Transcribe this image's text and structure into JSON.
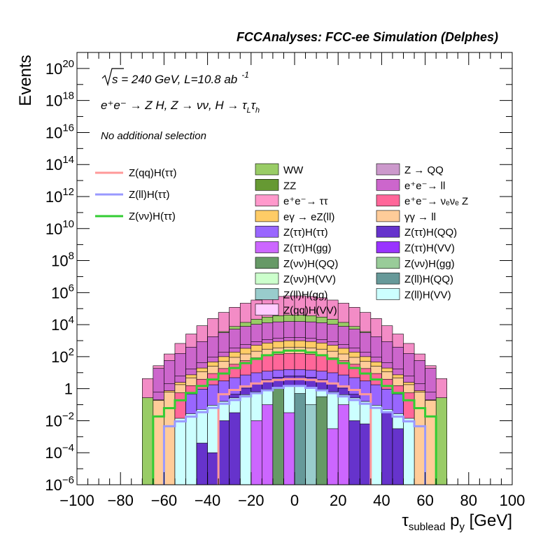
{
  "chart_data": {
    "type": "bar",
    "title": "FCCAnalyses: FCC-ee Simulation (Delphes)",
    "annotation": {
      "sqrt_s": "s = 240 GeV, L=10.8 ab",
      "lumi_exp": "-1",
      "process": "e⁺e⁻ → Z H, Z → νν, H → τ",
      "process_sub1": "L",
      "process_tau2": "τ",
      "process_sub2": "h",
      "selection": "No additional selection"
    },
    "xlabel_main": "τ",
    "xlabel_sub": "sublead",
    "xlabel_rest": " p",
    "xlabel_sub2": "y",
    "xlabel_unit": " [GeV]",
    "ylabel": "Events",
    "x_range": [
      -100,
      100
    ],
    "log_y": true,
    "y_range_exp": [
      -6,
      21
    ],
    "bin_width": 5,
    "x_ticks": [
      "−100",
      "−80",
      "−60",
      "−40",
      "−20",
      "0",
      "20",
      "40",
      "60",
      "80",
      "100"
    ],
    "x_tick_values": [
      -100,
      -80,
      -60,
      -40,
      -20,
      0,
      20,
      40,
      60,
      80,
      100
    ],
    "y_ticks": [
      {
        "exp": -6,
        "base": "10",
        "sup": "−6"
      },
      {
        "exp": -4,
        "base": "10",
        "sup": "−4"
      },
      {
        "exp": -2,
        "base": "10",
        "sup": "−2"
      },
      {
        "exp": 0,
        "base": "1",
        "sup": ""
      },
      {
        "exp": 2,
        "base": "10",
        "sup": "2"
      },
      {
        "exp": 4,
        "base": "10",
        "sup": "4"
      },
      {
        "exp": 6,
        "base": "10",
        "sup": "6"
      },
      {
        "exp": 8,
        "base": "10",
        "sup": "8"
      },
      {
        "exp": 10,
        "base": "10",
        "sup": "10"
      },
      {
        "exp": 12,
        "base": "10",
        "sup": "12"
      },
      {
        "exp": 14,
        "base": "10",
        "sup": "14"
      },
      {
        "exp": 16,
        "base": "10",
        "sup": "16"
      },
      {
        "exp": 18,
        "base": "10",
        "sup": "18"
      },
      {
        "exp": 20,
        "base": "10",
        "sup": "20"
      }
    ],
    "stack_envelopes": [
      {
        "name": "WW+ZZ",
        "color": "#f38cc6",
        "xmin": -70,
        "xmax": 70,
        "peak": 5.8,
        "edge": 0.2,
        "p": 2.2
      },
      {
        "name": "WW",
        "color": "#99cc66",
        "xmin": -70,
        "xmax": 70,
        "peak": 4.6,
        "edge": -1.0,
        "p": 2.2
      },
      {
        "name": "Z->QQ / ll",
        "color": "#cc66cc",
        "xmin": -65,
        "xmax": 65,
        "peak": 4.2,
        "edge": 1.0,
        "p": 2.2
      },
      {
        "name": "ee->ll",
        "color": "#cc66cc",
        "xmin": -65,
        "xmax": 65,
        "peak": 3.2,
        "edge": -0.5,
        "p": 2.0
      },
      {
        "name": "eγ->eZ(ll)",
        "color": "#ffcc66",
        "xmin": -65,
        "xmax": 65,
        "peak": 3.0,
        "edge": -1.0,
        "p": 2.0
      },
      {
        "name": "γγ->ll",
        "color": "#ffcc99",
        "xmin": -65,
        "xmax": 65,
        "peak": 2.6,
        "edge": -1.0,
        "p": 2.0
      },
      {
        "name": "ee->ννZ",
        "color": "#ff6699",
        "xmin": -55,
        "xmax": 55,
        "peak": 2.2,
        "edge": -0.5,
        "p": 2.0
      },
      {
        "name": "Z(ττ)H(ττ)",
        "color": "#9966ff",
        "xmin": -50,
        "xmax": 50,
        "peak": 1.2,
        "edge": -0.5,
        "p": 2.0
      },
      {
        "name": "Z(ττ)H(QQ)",
        "color": "#6633cc",
        "xmin": -50,
        "xmax": 50,
        "peak": 0.8,
        "edge": -3.0,
        "p": 2.0
      },
      {
        "name": "Z(ll)H(VV)",
        "color": "#ccffff",
        "xmin": -55,
        "xmax": 55,
        "peak": 0.2,
        "edge": -2.0,
        "p": 1.5
      }
    ],
    "inner_bars": [
      {
        "color": "#6633cc",
        "x": -45,
        "top": -3.4
      },
      {
        "color": "#6633cc",
        "x": -40,
        "top": -4.0
      },
      {
        "color": "#6633cc",
        "x": -35,
        "top": -2.0
      },
      {
        "color": "#6633cc",
        "x": -30,
        "top": -1.5
      },
      {
        "color": "#cc66ff",
        "x": -20,
        "top": -2.0
      },
      {
        "color": "#cc66ff",
        "x": -15,
        "top": -1.0
      },
      {
        "color": "#669966",
        "x": -10,
        "top": 0.0
      },
      {
        "color": "#cc66ff",
        "x": -5,
        "top": -1.5
      },
      {
        "color": "#669999",
        "x": 0,
        "top": -0.3
      },
      {
        "color": "#99cccc",
        "x": 5,
        "top": -1.0
      },
      {
        "color": "#669966",
        "x": 10,
        "top": -0.5
      },
      {
        "color": "#cc66ff",
        "x": 15,
        "top": -2.5
      },
      {
        "color": "#cc66ff",
        "x": 20,
        "top": -1.0
      },
      {
        "color": "#6633cc",
        "x": 25,
        "top": -2.0
      },
      {
        "color": "#6633cc",
        "x": 30,
        "top": -2.2
      },
      {
        "color": "#6633cc",
        "x": 40,
        "top": -1.5
      },
      {
        "color": "#6633cc",
        "x": 45,
        "top": -2.5
      }
    ],
    "lines": [
      {
        "name": "Z(qq)H(ττ)",
        "color": "#ff9999",
        "xmin": -35,
        "xmax": 35,
        "peak": 0.6,
        "edge": -0.5,
        "p": 2.0
      },
      {
        "name": "Z(ll)H(ττ)",
        "color": "#9999ff",
        "xmin": -60,
        "xmax": 60,
        "peak": 0.2,
        "edge": -2.5,
        "p": 1.4
      },
      {
        "name": "Z(νν)H(ττ)",
        "color": "#33cc33",
        "xmin": -65,
        "xmax": 65,
        "peak": 2.4,
        "edge": -2.0,
        "p": 1.6
      }
    ],
    "legend_lines": [
      {
        "label": "Z(qq)H(ττ)",
        "color": "#ff9999"
      },
      {
        "label": "Z(ll)H(ττ)",
        "color": "#9999ff"
      },
      {
        "label": "Z(νν)H(ττ)",
        "color": "#33cc33"
      }
    ],
    "legend_col1": [
      {
        "label": "WW",
        "color": "#99cc66"
      },
      {
        "label": "ZZ",
        "color": "#669933"
      },
      {
        "label": "e⁺e⁻→ ττ",
        "color": "#ff99cc"
      },
      {
        "label": "eγ → eZ(ll)",
        "color": "#ffcc66"
      },
      {
        "label": "Z(ττ)H(ττ)",
        "color": "#9966ff"
      },
      {
        "label": "Z(ττ)H(gg)",
        "color": "#cc66ff"
      },
      {
        "label": "Z(νν)H(QQ)",
        "color": "#669966"
      },
      {
        "label": "Z(νν)H(VV)",
        "color": "#ccffcc"
      },
      {
        "label": "Z(ll)H(gg)",
        "color": "#99cccc"
      },
      {
        "label": "Z(qq)H(VV)",
        "color": "#ffccff"
      }
    ],
    "legend_col2": [
      {
        "label": "Z → QQ",
        "color": "#cc99cc"
      },
      {
        "label": "e⁺e⁻→ ll",
        "color": "#cc66cc"
      },
      {
        "label": "e⁺e⁻→ νₑνₑ Z",
        "color": "#ff6699"
      },
      {
        "label": "γγ → ll",
        "color": "#ffcc99"
      },
      {
        "label": "Z(ττ)H(QQ)",
        "color": "#6633cc"
      },
      {
        "label": "Z(ττ)H(VV)",
        "color": "#9933ff"
      },
      {
        "label": "Z(νν)H(gg)",
        "color": "#99cc99"
      },
      {
        "label": "Z(ll)H(QQ)",
        "color": "#669999"
      },
      {
        "label": "Z(ll)H(VV)",
        "color": "#ccffff"
      }
    ]
  }
}
